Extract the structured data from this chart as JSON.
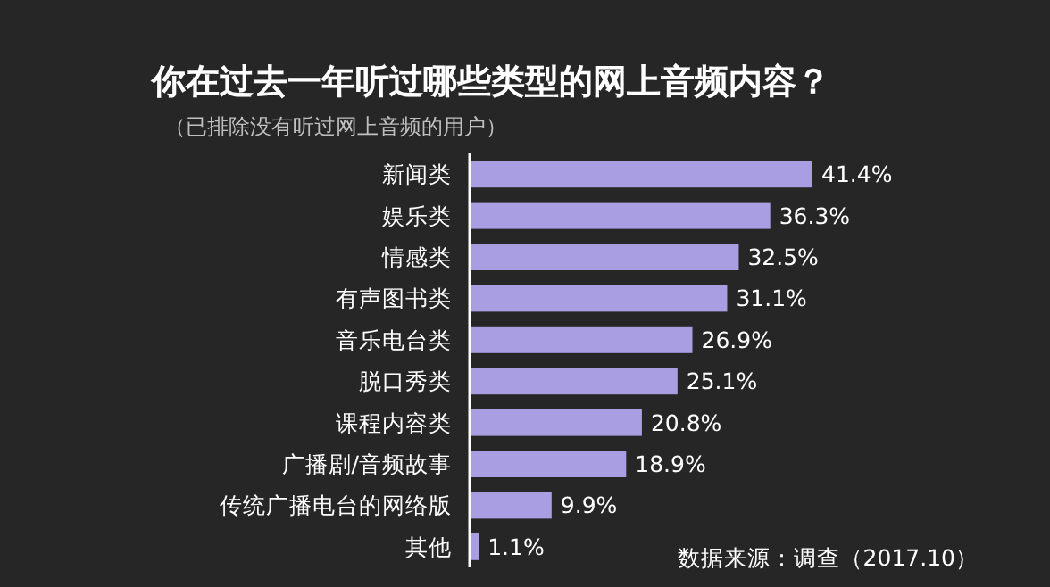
{
  "chart_data": {
    "type": "bar",
    "orientation": "horizontal",
    "title": "你在过去一年听过哪些类型的网上音频内容？",
    "subtitle": "（已排除没有听过网上音频的用户）",
    "categories": [
      "新闻类",
      "娱乐类",
      "情感类",
      "有声图书类",
      "音乐电台类",
      "脱口秀类",
      "课程内容类",
      "广播剧/音频故事",
      "传统广播电台的网络版",
      "其他"
    ],
    "values": [
      41.4,
      36.3,
      32.5,
      31.1,
      26.9,
      25.1,
      20.8,
      18.9,
      9.9,
      1.1
    ],
    "value_labels": [
      "41.4%",
      "36.3%",
      "32.5%",
      "31.1%",
      "26.9%",
      "25.1%",
      "20.8%",
      "18.9%",
      "9.9%",
      "1.1%"
    ],
    "color": "#a99ee2",
    "annotations": [
      "数据来源：调查（2017.10）"
    ]
  }
}
